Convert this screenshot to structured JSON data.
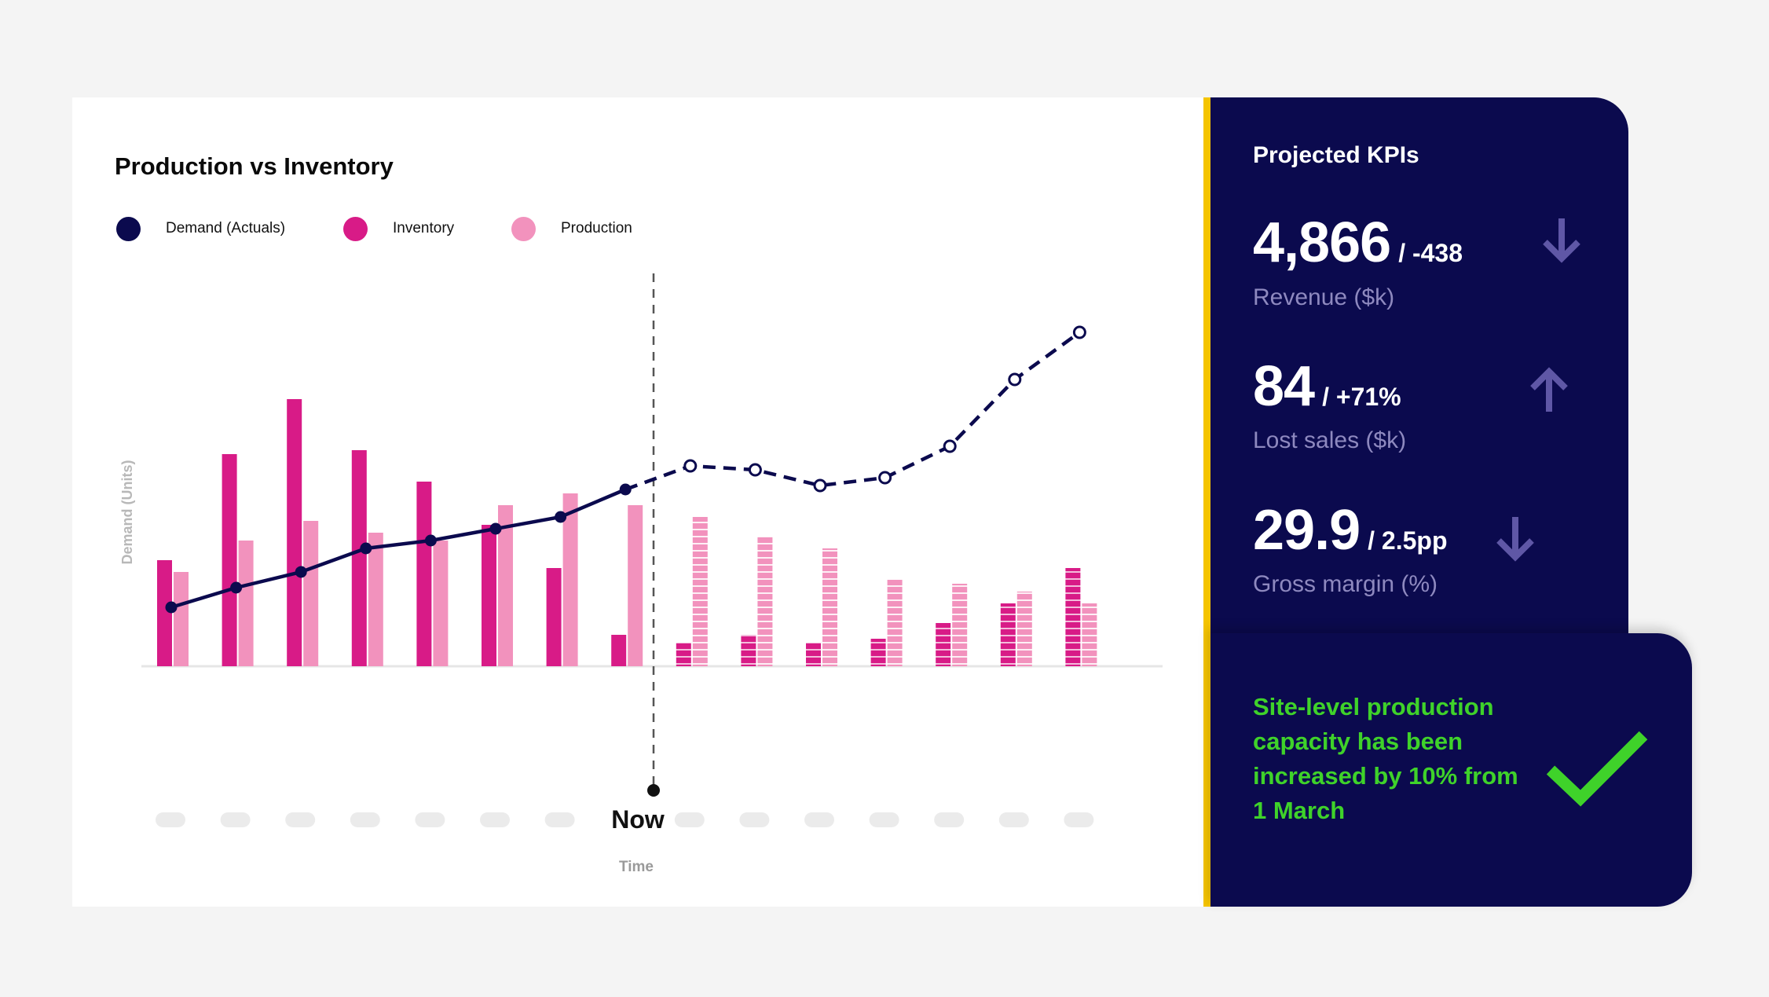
{
  "chart_card": {
    "title": "Production vs Inventory",
    "legend": [
      {
        "label": "Demand (Actuals)",
        "color": "#0b0a4e"
      },
      {
        "label": "Inventory",
        "color": "#d81b87"
      },
      {
        "label": "Production",
        "color": "#f292bd"
      }
    ]
  },
  "chart_data": {
    "type": "bar",
    "title": "Production vs Inventory",
    "ylabel": "Demand (Units)",
    "xlabel": "Time",
    "now_label": "Now",
    "categories": [
      "",
      "",
      "",
      "",
      "",
      "",
      "",
      "",
      "",
      "",
      "",
      "",
      "",
      "",
      ""
    ],
    "now_index": 7,
    "ylim": [
      0,
      100
    ],
    "series": [
      {
        "name": "Inventory",
        "type": "bar",
        "color": "#d81b87",
        "values": [
          27,
          54,
          68,
          55,
          47,
          36,
          25,
          8,
          6,
          8,
          6,
          7,
          11,
          16,
          25
        ]
      },
      {
        "name": "Production",
        "type": "bar",
        "color": "#f292bd",
        "values": [
          24,
          32,
          37,
          34,
          32,
          41,
          44,
          41,
          38,
          33,
          30,
          22,
          21,
          19,
          16
        ]
      },
      {
        "name": "Demand (Actuals)",
        "type": "line",
        "color": "#0b0a4e",
        "values": [
          15,
          20,
          24,
          30,
          32,
          35,
          38,
          45,
          51,
          50,
          46,
          48,
          56,
          73,
          85
        ],
        "actual_until_index": 7
      }
    ]
  },
  "kpis": {
    "title": "Projected KPIs",
    "items": [
      {
        "value": "4,866",
        "delta": "/ -438",
        "label": "Revenue ($k)",
        "trend": "down-arrow-icon"
      },
      {
        "value": "84",
        "delta": "/ +71%",
        "label": "Lost sales ($k)",
        "trend": "up-arrow-icon"
      },
      {
        "value": "29.9",
        "delta": "/ 2.5pp",
        "label": "Gross margin (%)",
        "trend": "down-arrow-icon"
      }
    ]
  },
  "note": {
    "text": "Site-level production capacity has been increased by 10% from 1 March",
    "icon": "checkmark-icon",
    "color": "#3fd22a"
  },
  "colors": {
    "navy": "#0b0a4e",
    "inventory": "#d81b87",
    "production": "#f292bd",
    "accent_bar": "#f5c400",
    "muted_text": "#8e89bf"
  }
}
